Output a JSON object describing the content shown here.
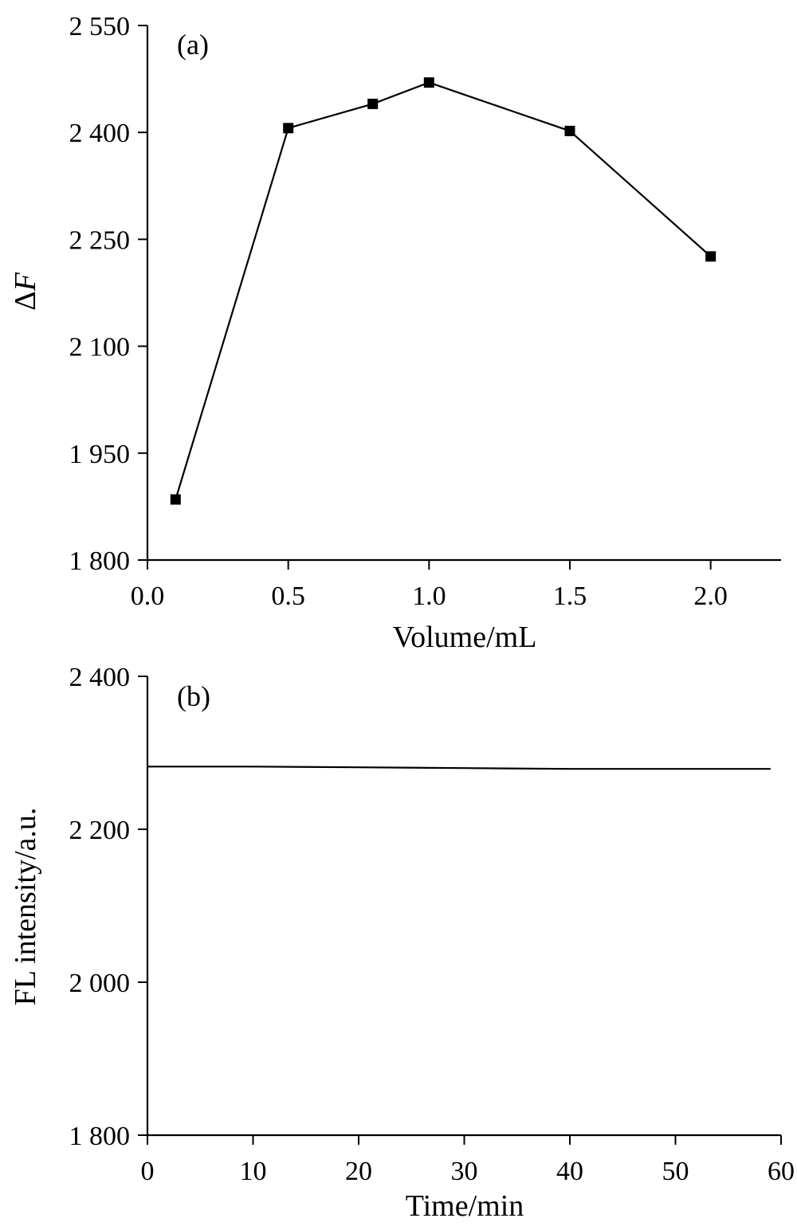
{
  "chart_data": [
    {
      "type": "line",
      "panel_label": "(a)",
      "x": [
        0.1,
        0.5,
        0.8,
        1.0,
        1.5,
        2.0
      ],
      "series": [
        {
          "values": [
            1885,
            2406,
            2440,
            2470,
            2402,
            2226
          ]
        }
      ],
      "markers": "square",
      "xlabel": "Volume/mL",
      "ylabel_main": "Δ",
      "ylabel_italic": "F",
      "xlim": [
        0.0,
        2.25
      ],
      "ylim": [
        1800,
        2550
      ],
      "xticks": [
        0.0,
        0.5,
        1.0,
        1.5,
        2.0
      ],
      "xtick_labels": [
        "0.0",
        "0.5",
        "1.0",
        "1.5",
        "2.0"
      ],
      "yticks": [
        1800,
        1950,
        2100,
        2250,
        2400,
        2550
      ],
      "ytick_labels": [
        "1 800",
        "1 950",
        "2 100",
        "2 250",
        "2 400",
        "2 550"
      ],
      "grid": false
    },
    {
      "type": "line",
      "panel_label": "(b)",
      "x": [
        0,
        10,
        20,
        30,
        40,
        50,
        59
      ],
      "series": [
        {
          "values": [
            2282,
            2282,
            2281,
            2280,
            2279,
            2279,
            2279
          ]
        }
      ],
      "xlabel": "Time/min",
      "ylabel": "FL intensity/a.u.",
      "xlim": [
        0,
        60
      ],
      "ylim": [
        1800,
        2400
      ],
      "xticks": [
        0,
        10,
        20,
        30,
        40,
        50,
        60
      ],
      "xtick_labels": [
        "0",
        "10",
        "20",
        "30",
        "40",
        "50",
        "60"
      ],
      "yticks": [
        1800,
        2000,
        2200,
        2400
      ],
      "ytick_labels": [
        "1 800",
        "2 000",
        "2 200",
        "2 400"
      ],
      "grid": false
    }
  ]
}
